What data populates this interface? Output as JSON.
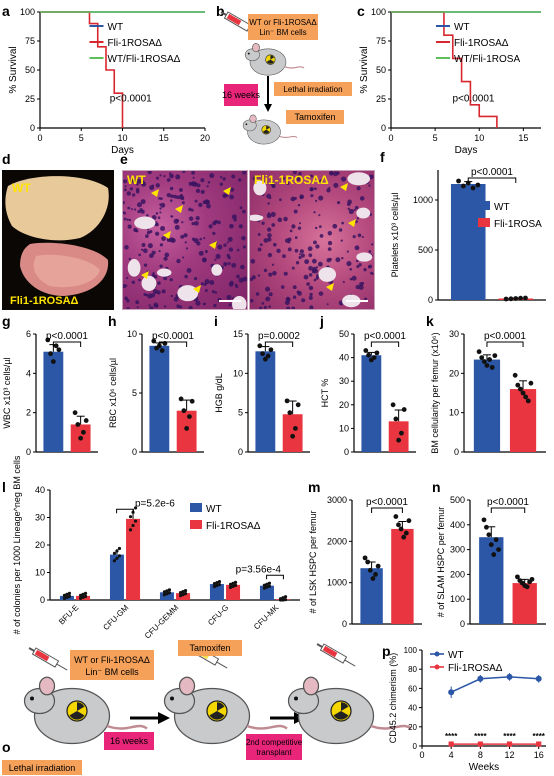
{
  "panels": {
    "a": {
      "label": "a",
      "ylabel": "% Survival",
      "xlabel": "Days",
      "pval": "p<0.0001",
      "legend": [
        {
          "name": "WT",
          "color": "#2c56a6"
        },
        {
          "name": "Fli-1ROSAΔ",
          "color": "#d8272e"
        },
        {
          "name": "WT/Fli-1ROSAΔ",
          "color": "#5fbf5a"
        }
      ],
      "xticks": [
        "0",
        "5",
        "10",
        "15",
        "20"
      ],
      "yticks": [
        "0",
        "25",
        "50",
        "75",
        "100"
      ]
    },
    "b": {
      "label": "b",
      "syringe_text": "WT or Fli-1ROSAΔ Lin^neg BM cells",
      "weeks": "16 weeks",
      "irradiation": "Lethal irradiation",
      "drug": "Tamoxifen"
    },
    "c": {
      "label": "c",
      "ylabel": "% Survival",
      "xlabel": "Days",
      "pval": "p<0.0001",
      "legend": [
        {
          "name": "WT",
          "color": "#2c56a6"
        },
        {
          "name": "Fli-1ROSAΔ",
          "color": "#d8272e"
        },
        {
          "name": "WT/Fli-1ROSA",
          "color": "#5fbf5a"
        }
      ],
      "xticks": [
        "0",
        "5",
        "10",
        "15"
      ],
      "yticks": [
        "0",
        "25",
        "50",
        "75",
        "100"
      ]
    },
    "d": {
      "label": "d",
      "wt": "WT",
      "ko": "Fli1-1ROSAΔ"
    },
    "e": {
      "label": "e",
      "wt": "WT",
      "ko": "Fli1-1ROSAΔ"
    },
    "f": {
      "label": "f",
      "ylabel": "Platelets x10³ cells/µl",
      "pval": "p<0.0001",
      "yticks": [
        "0",
        "500",
        "1000"
      ],
      "legend": [
        {
          "name": "WT",
          "color": "#2c56a6"
        },
        {
          "name": "Fli-1ROSA",
          "color": "#e8353f"
        }
      ]
    },
    "g": {
      "label": "g",
      "ylabel": "WBC x10³ cells/µl",
      "pval": "p<0.0001",
      "yticks": [
        "0",
        "2",
        "4",
        "6"
      ]
    },
    "h": {
      "label": "h",
      "ylabel": "RBC x10⁶ cells/µl",
      "pval": "p<0.0001",
      "yticks": [
        "0",
        "5",
        "10"
      ]
    },
    "i": {
      "label": "i",
      "ylabel": "HGB g/dL",
      "pval": "p=0.0002",
      "yticks": [
        "0",
        "5",
        "10",
        "15"
      ]
    },
    "j": {
      "label": "j",
      "ylabel": "HCT %",
      "pval": "p<0.0001",
      "yticks": [
        "0",
        "10",
        "20",
        "30",
        "40",
        "50"
      ]
    },
    "k": {
      "label": "k",
      "ylabel": "BM cellularity per femur (x10⁶)",
      "pval": "p<0.0001",
      "yticks": [
        "0",
        "10",
        "20",
        "30"
      ]
    },
    "l": {
      "label": "l",
      "ylabel": "# of colonies per 1000 Lineage^neg BM cells",
      "pval1": "p=5.2e-6",
      "pval2": "p=3.56e-4",
      "legend": [
        {
          "name": "WT",
          "color": "#2c56a6"
        },
        {
          "name": "Fli-1ROSAΔ",
          "color": "#e8353f"
        }
      ],
      "categories": [
        "BFU-E",
        "CFU-GM",
        "CFU-GEMM",
        "CFU-G",
        "CFU-MK"
      ],
      "yticks": [
        "0",
        "10",
        "20",
        "30",
        "40"
      ]
    },
    "m": {
      "label": "m",
      "ylabel": "# of LSK HSPC per femur",
      "pval": "p<0.0001",
      "yticks": [
        "0",
        "1000",
        "2000",
        "3000"
      ]
    },
    "n": {
      "label": "n",
      "ylabel": "# of SLAM HSPC per femur",
      "pval": "p<0.0001",
      "yticks": [
        "0",
        "100",
        "200",
        "300",
        "400",
        "500"
      ]
    },
    "o": {
      "label": "o",
      "syringe_text": "WT or Fli-1ROSAΔ Lin^neg BM cells",
      "weeks": "16 weeks",
      "drug": "Tamoxifen",
      "transplant": "2nd competitive transplant",
      "irradiation": "Lethal irradiation"
    },
    "p": {
      "label": "p",
      "ylabel": "CD45.2 chimerism (%)",
      "xlabel": "Weeks",
      "stars": "****",
      "legend": [
        {
          "name": "WT",
          "color": "#2c56a6"
        },
        {
          "name": "Fli-1ROSAΔ",
          "color": "#e8353f"
        }
      ],
      "xticks": [
        "0",
        "4",
        "8",
        "12",
        "16"
      ],
      "yticks": [
        "0",
        "20",
        "40",
        "60",
        "80",
        "100"
      ]
    }
  },
  "chart_data": [
    {
      "panel": "a",
      "type": "line",
      "x_unit": "days",
      "xlim": [
        0,
        20
      ],
      "ylim": [
        0,
        100
      ],
      "series": [
        {
          "name": "WT",
          "x": [
            0,
            20
          ],
          "y": [
            100,
            100
          ]
        },
        {
          "name": "Fli-1ROSAΔ",
          "x": [
            0,
            6,
            6,
            7,
            7,
            8,
            8,
            9,
            9,
            10,
            10
          ],
          "y": [
            100,
            100,
            90,
            90,
            70,
            70,
            50,
            50,
            30,
            30,
            0
          ]
        },
        {
          "name": "WT/Fli-1ROSAΔ",
          "x": [
            0,
            20
          ],
          "y": [
            100,
            100
          ]
        }
      ]
    },
    {
      "panel": "c",
      "type": "line",
      "xlim": [
        0,
        17
      ],
      "ylim": [
        0,
        100
      ],
      "series": [
        {
          "name": "WT",
          "x": [
            0,
            17
          ],
          "y": [
            100,
            100
          ]
        },
        {
          "name": "Fli-1ROSAΔ",
          "x": [
            0,
            6,
            6,
            7,
            7,
            8,
            8,
            9,
            9,
            10,
            10,
            12,
            12
          ],
          "y": [
            100,
            100,
            80,
            80,
            60,
            60,
            40,
            40,
            20,
            20,
            10,
            10,
            0
          ]
        },
        {
          "name": "WT/Fli-1ROSA",
          "x": [
            0,
            17
          ],
          "y": [
            100,
            100
          ]
        }
      ]
    },
    {
      "panel": "f",
      "type": "bar",
      "ylim": [
        0,
        1300
      ],
      "series": [
        {
          "name": "WT",
          "mean": 1160,
          "points": [
            1190,
            1140,
            1170,
            1120,
            1150
          ]
        },
        {
          "name": "Fli-1ROSA",
          "mean": 15,
          "points": [
            10,
            12,
            15,
            18,
            20
          ]
        }
      ]
    },
    {
      "panel": "g",
      "type": "bar",
      "ylim": [
        0,
        6
      ],
      "series": [
        {
          "name": "WT",
          "mean": 5.1,
          "points": [
            5.7,
            5.0,
            4.6,
            5.4,
            5.2
          ]
        },
        {
          "name": "Fli-1ROSAΔ",
          "mean": 1.4,
          "points": [
            2.0,
            1.4,
            0.7,
            1.0,
            1.6
          ]
        }
      ]
    },
    {
      "panel": "h",
      "type": "bar",
      "ylim": [
        0,
        10
      ],
      "series": [
        {
          "name": "WT",
          "mean": 9.0,
          "points": [
            9.4,
            8.8,
            9.0,
            8.6,
            9.2
          ]
        },
        {
          "name": "Fli-1ROSAΔ",
          "mean": 3.5,
          "points": [
            4.5,
            3.5,
            2.0,
            3.0,
            4.3
          ]
        }
      ]
    },
    {
      "panel": "i",
      "type": "bar",
      "ylim": [
        0,
        15
      ],
      "series": [
        {
          "name": "WT",
          "mean": 12.8,
          "points": [
            13.5,
            12.5,
            11.8,
            12.2,
            13.0
          ]
        },
        {
          "name": "Fli-1ROSAΔ",
          "mean": 4.8,
          "points": [
            6.5,
            5.0,
            2.0,
            3.0,
            6.0
          ]
        }
      ]
    },
    {
      "panel": "j",
      "type": "bar",
      "ylim": [
        0,
        50
      ],
      "series": [
        {
          "name": "WT",
          "mean": 41,
          "points": [
            43,
            41,
            39,
            40,
            42
          ]
        },
        {
          "name": "Fli-1ROSAΔ",
          "mean": 13,
          "points": [
            20,
            14,
            5,
            8,
            18
          ]
        }
      ]
    },
    {
      "panel": "k",
      "type": "bar",
      "ylim": [
        0,
        30
      ],
      "series": [
        {
          "name": "WT",
          "mean": 23.5,
          "points": [
            25.5,
            24,
            23,
            22,
            23.5,
            21.5,
            24.5
          ]
        },
        {
          "name": "Fli-1ROSAΔ",
          "mean": 16,
          "points": [
            19.5,
            17,
            16,
            15,
            14,
            13,
            17.5
          ]
        }
      ]
    },
    {
      "panel": "l",
      "type": "bar",
      "categories": [
        "BFU-E",
        "CFU-GM",
        "CFU-GEMM",
        "CFU-G",
        "CFU-MK"
      ],
      "ylim": [
        0,
        40
      ],
      "series": [
        {
          "name": "WT",
          "values": [
            1.5,
            16.5,
            2.8,
            5.8,
            5.2
          ]
        },
        {
          "name": "Fli-1ROSAΔ",
          "values": [
            1.5,
            29.5,
            2.5,
            5.5,
            0.3
          ]
        }
      ]
    },
    {
      "panel": "m",
      "type": "bar",
      "ylim": [
        0,
        3000
      ],
      "series": [
        {
          "name": "WT",
          "mean": 1350,
          "points": [
            1600,
            1500,
            1300,
            1100,
            1200,
            1400
          ]
        },
        {
          "name": "Fli-1ROSAΔ",
          "mean": 2300,
          "points": [
            2600,
            2400,
            2300,
            2100,
            2200,
            2500
          ]
        }
      ]
    },
    {
      "panel": "n",
      "type": "bar",
      "ylim": [
        0,
        500
      ],
      "series": [
        {
          "name": "WT",
          "mean": 350,
          "points": [
            420,
            390,
            360,
            320,
            280,
            340,
            300
          ]
        },
        {
          "name": "Fli-1ROSAΔ",
          "mean": 165,
          "points": [
            190,
            175,
            165,
            155,
            150,
            170,
            180
          ]
        }
      ]
    },
    {
      "panel": "p",
      "type": "line",
      "x": [
        4,
        8,
        12,
        16
      ],
      "xlim": [
        0,
        17
      ],
      "ylim": [
        0,
        100
      ],
      "series": [
        {
          "name": "WT",
          "y": [
            56,
            70,
            72,
            70
          ],
          "err": [
            6,
            4,
            4,
            4
          ]
        },
        {
          "name": "Fli-1ROSAΔ",
          "y": [
            2,
            2,
            2,
            2
          ],
          "err": [
            1,
            1,
            1,
            1
          ]
        }
      ]
    }
  ]
}
